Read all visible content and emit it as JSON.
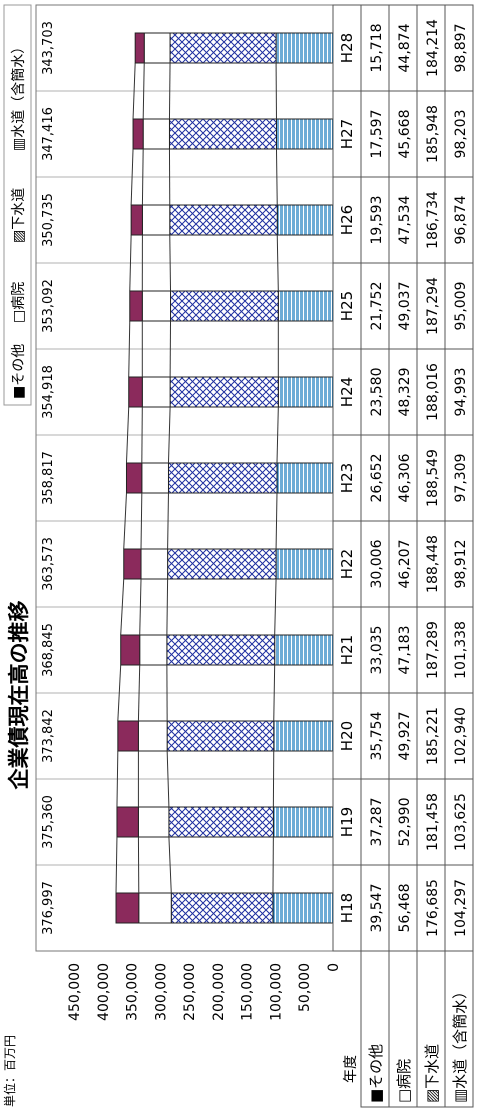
{
  "chart_data": {
    "type": "bar",
    "title": "企業債現在高の推移",
    "unit_label": "単位：百万円",
    "year_header": "年度",
    "categories": [
      "H18",
      "H19",
      "H20",
      "H21",
      "H22",
      "H23",
      "H24",
      "H25",
      "H26",
      "H27",
      "H28"
    ],
    "series": [
      {
        "name": "その他",
        "legend_label": "■その他",
        "table_label": "■その他",
        "color": "#8b2a5c",
        "pattern": "solid",
        "values": [
          39547,
          37287,
          35754,
          33035,
          30006,
          26652,
          23580,
          21752,
          19593,
          17597,
          15718
        ],
        "value_labels": [
          "39,547",
          "37,287",
          "35,754",
          "33,035",
          "30,006",
          "26,652",
          "23,580",
          "21,752",
          "19,593",
          "17,597",
          "15,718"
        ]
      },
      {
        "name": "病院",
        "legend_label": "□病院",
        "table_label": "□病院",
        "color": "#ffffff",
        "pattern": "plain",
        "values": [
          56468,
          52990,
          49927,
          47183,
          46207,
          46306,
          48329,
          49037,
          47534,
          45668,
          44874
        ],
        "value_labels": [
          "56,468",
          "52,990",
          "49,927",
          "47,183",
          "46,207",
          "46,306",
          "48,329",
          "49,037",
          "47,534",
          "45,668",
          "44,874"
        ]
      },
      {
        "name": "下水道",
        "legend_label": "▨下水道",
        "table_label": "▨下水道",
        "color": "#1e2fa0",
        "pattern": "crosshatch",
        "values": [
          176685,
          181458,
          185221,
          187289,
          188448,
          188549,
          188016,
          187294,
          186734,
          185948,
          184214
        ],
        "value_labels": [
          "176,685",
          "181,458",
          "185,221",
          "187,289",
          "188,448",
          "188,549",
          "188,016",
          "187,294",
          "186,734",
          "185,948",
          "184,214"
        ]
      },
      {
        "name": "水道（含簡水）",
        "legend_label": "▥水道（含簡水）",
        "table_label": "▥水道（含簡水）",
        "color": "#1e7fc0",
        "pattern": "lines",
        "values": [
          104297,
          103625,
          102940,
          101338,
          98912,
          97309,
          94993,
          95009,
          96874,
          98203,
          98897
        ],
        "value_labels": [
          "104,297",
          "103,625",
          "102,940",
          "101,338",
          "98,912",
          "97,309",
          "94,993",
          "95,009",
          "96,874",
          "98,203",
          "98,897"
        ]
      }
    ],
    "totals": [
      376997,
      375360,
      373842,
      368845,
      363573,
      358817,
      354918,
      353092,
      350735,
      347416,
      343703
    ],
    "total_labels": [
      "376,997",
      "375,360",
      "373,842",
      "368,845",
      "363,573",
      "358,817",
      "354,918",
      "353,092",
      "350,735",
      "347,416",
      "343,703"
    ],
    "ylim": [
      0,
      450000
    ],
    "yticks": [
      "0",
      "50,000",
      "100,000",
      "150,000",
      "200,000",
      "250,000",
      "300,000",
      "350,000",
      "400,000",
      "450,000"
    ],
    "stacked": true,
    "grid": true,
    "legend_position": "top-right"
  }
}
